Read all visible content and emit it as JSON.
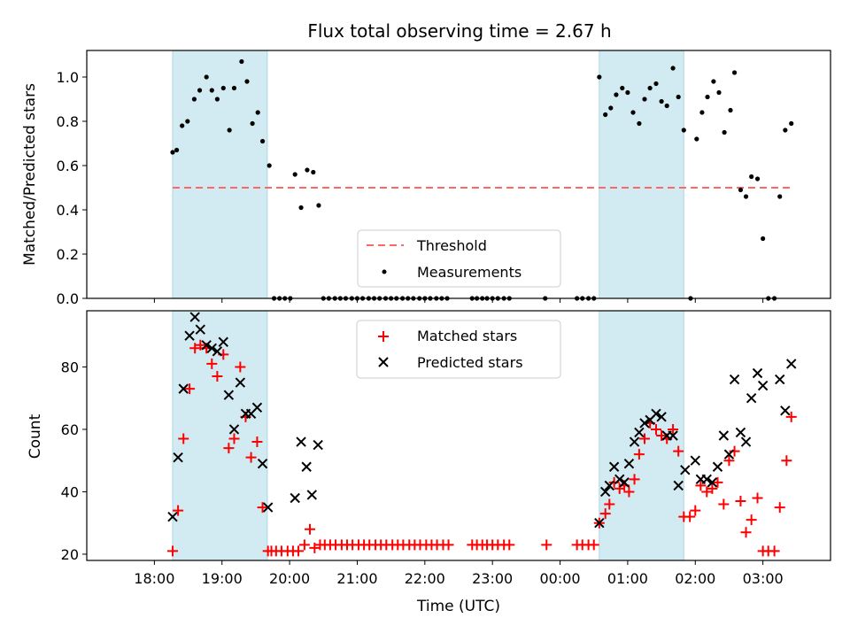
{
  "chart_data": {
    "title": "Flux total observing time = 2.67 h",
    "xlabel": "Time (UTC)",
    "x_tick_labels": [
      "18:00",
      "19:00",
      "20:00",
      "21:00",
      "22:00",
      "23:00",
      "00:00",
      "01:00",
      "02:00",
      "03:00"
    ],
    "x_tick_hours": [
      18,
      19,
      20,
      21,
      22,
      23,
      24,
      25,
      26,
      27
    ],
    "xlim_hours": [
      17.0,
      28.0
    ],
    "shaded_intervals_hours": [
      [
        18.27,
        19.67
      ],
      [
        24.58,
        25.83
      ]
    ],
    "shade_color": "#add8e6",
    "panels": [
      {
        "type": "scatter",
        "ylabel": "Matched/Predicted stars",
        "ylim": [
          0,
          1.12
        ],
        "yticks": [
          "0.0",
          "0.2",
          "0.4",
          "0.6",
          "0.8",
          "1.0"
        ],
        "ytick_values": [
          0,
          0.2,
          0.4,
          0.6,
          0.8,
          1.0
        ],
        "legend_position": "lower center",
        "threshold": {
          "name": "Threshold",
          "value": 0.5,
          "x_range": [
            18.27,
            27.45
          ],
          "color": "#ff6666",
          "style": "dashed"
        },
        "series": [
          {
            "name": "Measurements",
            "marker": "dot",
            "color": "#000000",
            "x": [
              18.27,
              18.33,
              18.41,
              18.49,
              18.59,
              18.67,
              18.77,
              18.85,
              18.93,
              19.02,
              19.11,
              19.18,
              19.29,
              19.37,
              19.45,
              19.53,
              19.6,
              19.7,
              19.77,
              19.85,
              19.93,
              20.01,
              20.08,
              20.17,
              20.26,
              20.35,
              20.43,
              20.5,
              20.58,
              20.67,
              20.75,
              20.83,
              20.92,
              21.0,
              21.08,
              21.17,
              21.25,
              21.33,
              21.42,
              21.5,
              21.58,
              21.67,
              21.75,
              21.83,
              21.92,
              22.0,
              22.08,
              22.17,
              22.25,
              22.33,
              22.7,
              22.77,
              22.85,
              22.92,
              23.0,
              23.08,
              23.17,
              23.25,
              23.78,
              24.25,
              24.33,
              24.42,
              24.5,
              24.58,
              24.67,
              24.75,
              24.83,
              24.92,
              25.0,
              25.08,
              25.17,
              25.25,
              25.33,
              25.42,
              25.5,
              25.58,
              25.67,
              25.75,
              25.83,
              25.93,
              26.02,
              26.1,
              26.18,
              26.27,
              26.35,
              26.43,
              26.52,
              26.58,
              26.67,
              26.75,
              26.83,
              26.92,
              27.0,
              27.08,
              27.17,
              27.25,
              27.33,
              27.42
            ],
            "y": [
              0.66,
              0.67,
              0.78,
              0.8,
              0.9,
              0.94,
              1.0,
              0.94,
              0.9,
              0.95,
              0.76,
              0.95,
              1.07,
              0.98,
              0.79,
              0.84,
              0.71,
              0.6,
              0.0,
              0.0,
              0.0,
              0.0,
              0.56,
              0.41,
              0.58,
              0.57,
              0.42,
              0.0,
              0.0,
              0.0,
              0.0,
              0.0,
              0.0,
              0.0,
              0.0,
              0.0,
              0.0,
              0.0,
              0.0,
              0.0,
              0.0,
              0.0,
              0.0,
              0.0,
              0.0,
              0.0,
              0.0,
              0.0,
              0.0,
              0.0,
              0.0,
              0.0,
              0.0,
              0.0,
              0.0,
              0.0,
              0.0,
              0.0,
              0.0,
              0.0,
              0.0,
              0.0,
              0.0,
              1.0,
              0.83,
              0.86,
              0.92,
              0.95,
              0.93,
              0.84,
              0.79,
              0.9,
              0.95,
              0.97,
              0.89,
              0.87,
              1.04,
              0.91,
              0.76,
              0.0,
              0.72,
              0.84,
              0.91,
              0.98,
              0.93,
              0.75,
              0.85,
              1.02,
              0.49,
              0.46,
              0.55,
              0.54,
              0.27,
              0.0,
              0.0,
              0.46,
              0.76,
              0.79
            ]
          }
        ]
      },
      {
        "type": "scatter",
        "ylabel": "Count",
        "ylim": [
          18,
          98
        ],
        "yticks": [
          "20",
          "40",
          "60",
          "80"
        ],
        "ytick_values": [
          20,
          40,
          60,
          80
        ],
        "legend_position": "upper center",
        "series": [
          {
            "name": "Matched stars",
            "marker": "plus",
            "color": "#ff0000",
            "x": [
              18.27,
              18.35,
              18.43,
              18.52,
              18.6,
              18.68,
              18.77,
              18.85,
              18.93,
              19.02,
              19.1,
              19.18,
              19.27,
              19.35,
              19.43,
              19.52,
              19.6,
              19.68,
              19.73,
              19.8,
              19.88,
              19.97,
              20.05,
              20.13,
              20.22,
              20.3,
              20.37,
              20.45,
              20.52,
              20.6,
              20.68,
              20.77,
              20.85,
              20.93,
              21.02,
              21.1,
              21.18,
              21.27,
              21.35,
              21.43,
              21.52,
              21.6,
              21.68,
              21.77,
              21.85,
              21.93,
              22.02,
              22.1,
              22.18,
              22.27,
              22.35,
              22.7,
              22.77,
              22.85,
              22.92,
              23.0,
              23.08,
              23.17,
              23.25,
              23.8,
              24.25,
              24.33,
              24.42,
              24.5,
              24.58,
              24.67,
              24.73,
              24.8,
              24.88,
              24.95,
              25.02,
              25.1,
              25.17,
              25.25,
              25.33,
              25.42,
              25.5,
              25.58,
              25.67,
              25.75,
              25.83,
              25.92,
              26.0,
              26.08,
              26.17,
              26.25,
              26.33,
              26.42,
              26.5,
              26.58,
              26.67,
              26.75,
              26.83,
              26.92,
              27.0,
              27.08,
              27.17,
              27.25,
              27.35,
              27.42
            ],
            "y": [
              21,
              34,
              57,
              73,
              86,
              87,
              86,
              81,
              77,
              84,
              54,
              57,
              80,
              64,
              51,
              56,
              35,
              21,
              21,
              21,
              21,
              21,
              21,
              21,
              23,
              28,
              22,
              23,
              23,
              23,
              23,
              23,
              23,
              23,
              23,
              23,
              23,
              23,
              23,
              23,
              23,
              23,
              23,
              23,
              23,
              23,
              23,
              23,
              23,
              23,
              23,
              23,
              23,
              23,
              23,
              23,
              23,
              23,
              23,
              23,
              23,
              23,
              23,
              23,
              30,
              33,
              36,
              43,
              41,
              42,
              40,
              44,
              52,
              57,
              62,
              60,
              58,
              57,
              60,
              53,
              32,
              32,
              34,
              42,
              40,
              41,
              43,
              36,
              50,
              53,
              37,
              27,
              31,
              38,
              21,
              21,
              21,
              35,
              50,
              64
            ]
          },
          {
            "name": "Predicted stars",
            "marker": "x",
            "color": "#000000",
            "x": [
              18.27,
              18.35,
              18.43,
              18.52,
              18.6,
              18.68,
              18.77,
              18.85,
              18.93,
              19.02,
              19.1,
              19.18,
              19.27,
              19.35,
              19.43,
              19.52,
              19.6,
              19.68,
              20.08,
              20.17,
              20.25,
              20.33,
              20.42,
              24.58,
              24.67,
              24.73,
              24.8,
              24.88,
              24.95,
              25.02,
              25.1,
              25.17,
              25.25,
              25.33,
              25.42,
              25.5,
              25.58,
              25.67,
              25.75,
              25.85,
              26.0,
              26.08,
              26.17,
              26.25,
              26.33,
              26.42,
              26.5,
              26.58,
              26.67,
              26.75,
              26.83,
              26.92,
              27.0,
              27.25,
              27.33,
              27.42
            ],
            "y": [
              32,
              51,
              73,
              90,
              96,
              92,
              87,
              86,
              85,
              88,
              71,
              60,
              75,
              65,
              65,
              67,
              49,
              35,
              38,
              56,
              48,
              39,
              55,
              30,
              40,
              42,
              48,
              44,
              43,
              49,
              56,
              59,
              62,
              63,
              65,
              64,
              58,
              58,
              42,
              47,
              50,
              44,
              44,
              43,
              48,
              58,
              52,
              76,
              59,
              56,
              70,
              78,
              74,
              76,
              66,
              81
            ]
          }
        ]
      }
    ]
  }
}
